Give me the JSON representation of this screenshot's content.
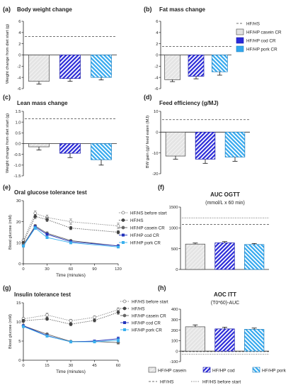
{
  "colors": {
    "casein": "#dedede",
    "cod": "#2a2ad8",
    "pork": "#33a8ee",
    "hfhs": "#555555",
    "hfhs_before": "#777777",
    "ogtt_hfhs": "#444444",
    "ogtt_casein": "#666666",
    "ogtt_cod": "#2233bb",
    "ogtt_pork": "#3ab0ee"
  },
  "panel_a": {
    "tag": "(a)",
    "title": "Body weight change",
    "ylabel": "Weight change from diet start (g)",
    "yticks": [
      "-6",
      "-4",
      "-2",
      "0",
      "2",
      "4",
      "6"
    ]
  },
  "panel_b": {
    "tag": "(b)",
    "title": "Fat mass change",
    "yticks": [
      "-6",
      "-4",
      "-2",
      "0",
      "2",
      "4",
      "6"
    ]
  },
  "panel_c": {
    "tag": "(c)",
    "title": "Lean mass change",
    "ylabel": "Weight change from diet start (g)",
    "yticks": [
      "-1.5",
      "-1.0",
      "-0.5",
      "0.0",
      "0.5",
      "1.0",
      "1.5"
    ]
  },
  "panel_d": {
    "tag": "(d)",
    "title": "Feed efficiency (g/MJ)",
    "ylabel": "BW gain (g)/ feed eaten (MJ)",
    "yticks": [
      "-20",
      "-10",
      "0",
      "10"
    ]
  },
  "panel_e": {
    "tag": "(e)",
    "title": "Oral glucose tolerance test",
    "ylabel": "Blood glucose (mM)",
    "xlabel": "Time (minutes)",
    "yticks": [
      "0",
      "10",
      "20",
      "30"
    ],
    "xticks": [
      "0",
      "30",
      "60",
      "90",
      "120"
    ]
  },
  "panel_f": {
    "tag": "(f)",
    "title": "AUC OGTT",
    "subtitle": "(mmol/L x 60 min)",
    "yticks": [
      "0",
      "500",
      "1000",
      "1500"
    ]
  },
  "panel_g": {
    "tag": "(g)",
    "title": "Insulin tolerance test",
    "ylabel": "Blood glucose (mM)",
    "xlabel": "Time (minutes)",
    "yticks": [
      "0",
      "5",
      "10",
      "15"
    ],
    "xticks": [
      "0",
      "15",
      "30",
      "45",
      "60"
    ]
  },
  "panel_h": {
    "tag": "(h)",
    "title": "AOC ITT",
    "subtitle": "(T0*60)-AUC",
    "yticks": [
      "-100",
      "0",
      "100",
      "200",
      "300",
      "400"
    ]
  },
  "legend_ab": {
    "items": [
      "HF/HS",
      "HF/HP casein CR",
      "HF/HP cod CR",
      "HF/HP pork CR"
    ]
  },
  "legend_e": {
    "items": [
      "HF/HS before start",
      "HF/HS",
      "HF/HP casein CR",
      "HF/HP cod CR",
      "HF/HP pork CR"
    ]
  },
  "legend_g": {
    "items": [
      "HF/HS before start",
      "HF/HS",
      "HF/HP casein CR",
      "HF/HP cod CR",
      "HF/HP pork CR"
    ]
  },
  "legend_bottom": {
    "items": [
      "HF/HP casein",
      "HF/HP cod",
      "HF/HP pork",
      "HF/HS",
      "HF/HS before start"
    ]
  },
  "chart_data": [
    {
      "id": "a",
      "type": "bar",
      "title": "Body weight change",
      "ylabel": "Weight change from diet start (g)",
      "ylim": [
        -6,
        6
      ],
      "categories": [
        "HF/HP casein CR",
        "HF/HP cod CR",
        "HF/HP pork CR"
      ],
      "values": [
        -4.7,
        -4.2,
        -4.0
      ],
      "errors": [
        0.5,
        0.5,
        0.45
      ],
      "reference_lines": [
        {
          "name": "HF/HS",
          "value": 3.3
        }
      ]
    },
    {
      "id": "b",
      "type": "bar",
      "title": "Fat mass change",
      "ylim": [
        -6,
        6
      ],
      "categories": [
        "HF/HP casein CR",
        "HF/HP cod CR",
        "HF/HP pork CR"
      ],
      "values": [
        -4.4,
        -3.8,
        -3.0
      ],
      "errors": [
        0.35,
        0.45,
        0.6
      ],
      "reference_lines": [
        {
          "name": "HF/HS",
          "value": 1.5
        }
      ]
    },
    {
      "id": "c",
      "type": "bar",
      "title": "Lean mass change",
      "ylabel": "Weight change from diet start (g)",
      "ylim": [
        -1.5,
        1.5
      ],
      "categories": [
        "HF/HP casein CR",
        "HF/HP cod CR",
        "HF/HP pork CR"
      ],
      "values": [
        -0.15,
        -0.45,
        -0.75
      ],
      "errors": [
        0.15,
        0.2,
        0.25
      ],
      "reference_lines": [
        {
          "name": "HF/HS",
          "value": 1.15
        }
      ]
    },
    {
      "id": "d",
      "type": "bar",
      "title": "Feed efficiency (g/MJ)",
      "ylabel": "BW gain (g)/ feed eaten (MJ)",
      "ylim": [
        -20,
        10
      ],
      "categories": [
        "HF/HP casein CR",
        "HF/HP cod CR",
        "HF/HP pork CR"
      ],
      "values": [
        -11.5,
        -13.0,
        -12.0
      ],
      "errors": [
        1.5,
        2.0,
        2.0
      ],
      "reference_lines": [
        {
          "name": "HF/HS",
          "value": 6.0
        }
      ]
    },
    {
      "id": "e",
      "type": "line",
      "title": "Oral glucose tolerance test",
      "xlabel": "Time (minutes)",
      "ylabel": "Blood glucose (mM)",
      "xlim": [
        0,
        120
      ],
      "ylim": [
        0,
        30
      ],
      "x": [
        0,
        15,
        30,
        60,
        120
      ],
      "series": [
        {
          "name": "HF/HS before start",
          "values": [
            11,
            24,
            22,
            20,
            18
          ],
          "errors": [
            0.8,
            1.2,
            1.2,
            1.3,
            1.3
          ]
        },
        {
          "name": "HF/HS",
          "values": [
            10,
            22.5,
            21,
            17,
            15
          ],
          "errors": [
            0.8,
            1.0,
            1.0,
            0.8,
            0.8
          ]
        },
        {
          "name": "HF/HP casein CR",
          "values": [
            9,
            18,
            14.5,
            11,
            8.5
          ],
          "errors": [
            0.5,
            0.7,
            0.7,
            0.5,
            0.4
          ]
        },
        {
          "name": "HF/HP cod CR",
          "values": [
            8.5,
            17.5,
            14,
            10.5,
            8.5
          ],
          "errors": [
            0.5,
            0.7,
            0.6,
            0.5,
            0.4
          ]
        },
        {
          "name": "HF/HP pork CR",
          "values": [
            8.5,
            17,
            12.5,
            10,
            8
          ],
          "errors": [
            0.5,
            0.7,
            0.6,
            0.5,
            0.4
          ]
        }
      ]
    },
    {
      "id": "f",
      "type": "bar",
      "title": "AUC OGTT",
      "subtitle": "(mmol/L x 60 min)",
      "ylim": [
        0,
        1500
      ],
      "categories": [
        "HF/HP casein",
        "HF/HP cod",
        "HF/HP pork"
      ],
      "values": [
        610,
        640,
        600
      ],
      "errors": [
        25,
        30,
        25
      ],
      "reference_lines": [
        {
          "name": "HF/HS",
          "value": 1080
        },
        {
          "name": "HF/HS before start",
          "value": 1240
        }
      ]
    },
    {
      "id": "g",
      "type": "line",
      "title": "Insulin tolerance test",
      "xlabel": "Time (minutes)",
      "ylabel": "Blood glucose (mM)",
      "xlim": [
        0,
        60
      ],
      "ylim": [
        0,
        15
      ],
      "x": [
        0,
        15,
        30,
        45,
        60
      ],
      "series": [
        {
          "name": "HF/HS before start",
          "values": [
            10.8,
            11.8,
            10.3,
            11.2,
            13.2
          ],
          "errors": [
            0.4,
            0.5,
            0.4,
            0.4,
            0.5
          ]
        },
        {
          "name": "HF/HS",
          "values": [
            10.3,
            10.8,
            9.4,
            10.4,
            12.5
          ],
          "errors": [
            0.4,
            0.4,
            0.4,
            0.4,
            0.5
          ]
        },
        {
          "name": "HF/HP casein CR",
          "values": [
            9.0,
            6.8,
            4.9,
            4.9,
            4.6
          ],
          "errors": [
            0.3,
            0.3,
            0.2,
            0.3,
            0.4
          ]
        },
        {
          "name": "HF/HP cod CR",
          "values": [
            9.0,
            6.4,
            4.8,
            5.0,
            5.6
          ],
          "errors": [
            0.3,
            0.3,
            0.2,
            0.3,
            0.5
          ]
        },
        {
          "name": "HF/HP pork CR",
          "values": [
            8.8,
            6.3,
            4.8,
            4.8,
            5.2
          ],
          "errors": [
            0.3,
            0.3,
            0.2,
            0.3,
            0.5
          ]
        }
      ]
    },
    {
      "id": "h",
      "type": "bar",
      "title": "AOC ITT",
      "subtitle": "(T0*60)-AUC",
      "ylim": [
        -100,
        400
      ],
      "categories": [
        "HF/HP casein",
        "HF/HP cod",
        "HF/HP pork"
      ],
      "values": [
        232,
        212,
        208
      ],
      "errors": [
        18,
        16,
        12
      ],
      "reference_lines": [
        {
          "name": "HF/HS",
          "value": -5
        },
        {
          "name": "HF/HS before start",
          "value": -30
        }
      ]
    }
  ]
}
